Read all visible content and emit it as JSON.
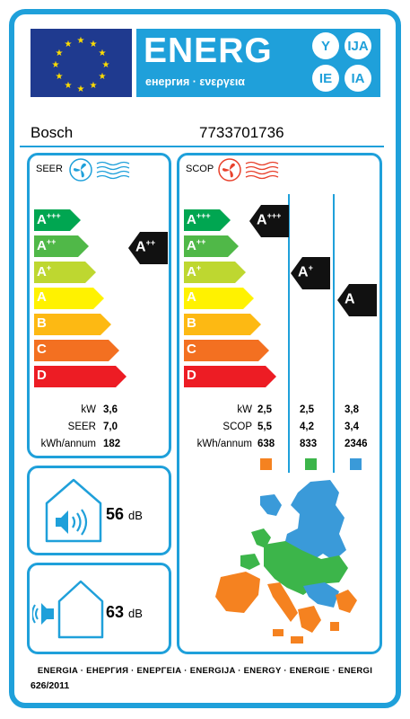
{
  "header": {
    "title": "ENERG",
    "subtitle": "енергия · ενεργεια",
    "lang_codes": [
      "Y",
      "IJA",
      "IE",
      "IA"
    ]
  },
  "product": {
    "supplier": "Bosch",
    "model": "7733701736"
  },
  "scale_classes": [
    {
      "main": "A",
      "sup": "+++",
      "color": "#00a651"
    },
    {
      "main": "A",
      "sup": "++",
      "color": "#50b848"
    },
    {
      "main": "A",
      "sup": "+",
      "color": "#bed730"
    },
    {
      "main": "A",
      "sup": "",
      "color": "#fff200"
    },
    {
      "main": "B",
      "sup": "",
      "color": "#fdb913"
    },
    {
      "main": "C",
      "sup": "",
      "color": "#f37021"
    },
    {
      "main": "D",
      "sup": "",
      "color": "#ed1c24"
    }
  ],
  "seer": {
    "title": "SEER",
    "class_main": "A",
    "class_sup": "++",
    "labels": [
      "kW",
      "SEER",
      "kWh/annum"
    ],
    "values": [
      "3,6",
      "7,0",
      "182"
    ]
  },
  "scop": {
    "title": "SCOP",
    "labels": [
      "kW",
      "SCOP",
      "kWh/annum"
    ],
    "zones": [
      {
        "class_main": "A",
        "class_sup": "+++",
        "values": [
          "2,5",
          "5,5",
          "638"
        ],
        "color": "#f58220"
      },
      {
        "class_main": "A",
        "class_sup": "+",
        "values": [
          "2,5",
          "4,2",
          "833"
        ],
        "color": "#3cb54a"
      },
      {
        "class_main": "A",
        "class_sup": "",
        "values": [
          "3,8",
          "3,4",
          "2346"
        ],
        "color": "#3a9ad9"
      }
    ]
  },
  "noise": {
    "indoor": {
      "value": "56",
      "unit": "dB"
    },
    "outdoor": {
      "value": "63",
      "unit": "dB"
    }
  },
  "footer": {
    "languages": "ENERGIA · ЕНЕРГИЯ · ΕΝΕΡΓΕΙΑ · ENERGIJA · ENERGY · ENERGIE · ENERGI",
    "regulation": "626/2011"
  },
  "colors": {
    "frame": "#1fa0da",
    "eu_blue": "#1f3a8f",
    "eu_star": "#ffdd00",
    "indicator": "#111111"
  },
  "icons": [
    "eu-flag-icon",
    "fan-cool-icon",
    "fan-heat-icon",
    "indoor-speaker-icon",
    "outdoor-speaker-icon",
    "europe-map-icon"
  ]
}
